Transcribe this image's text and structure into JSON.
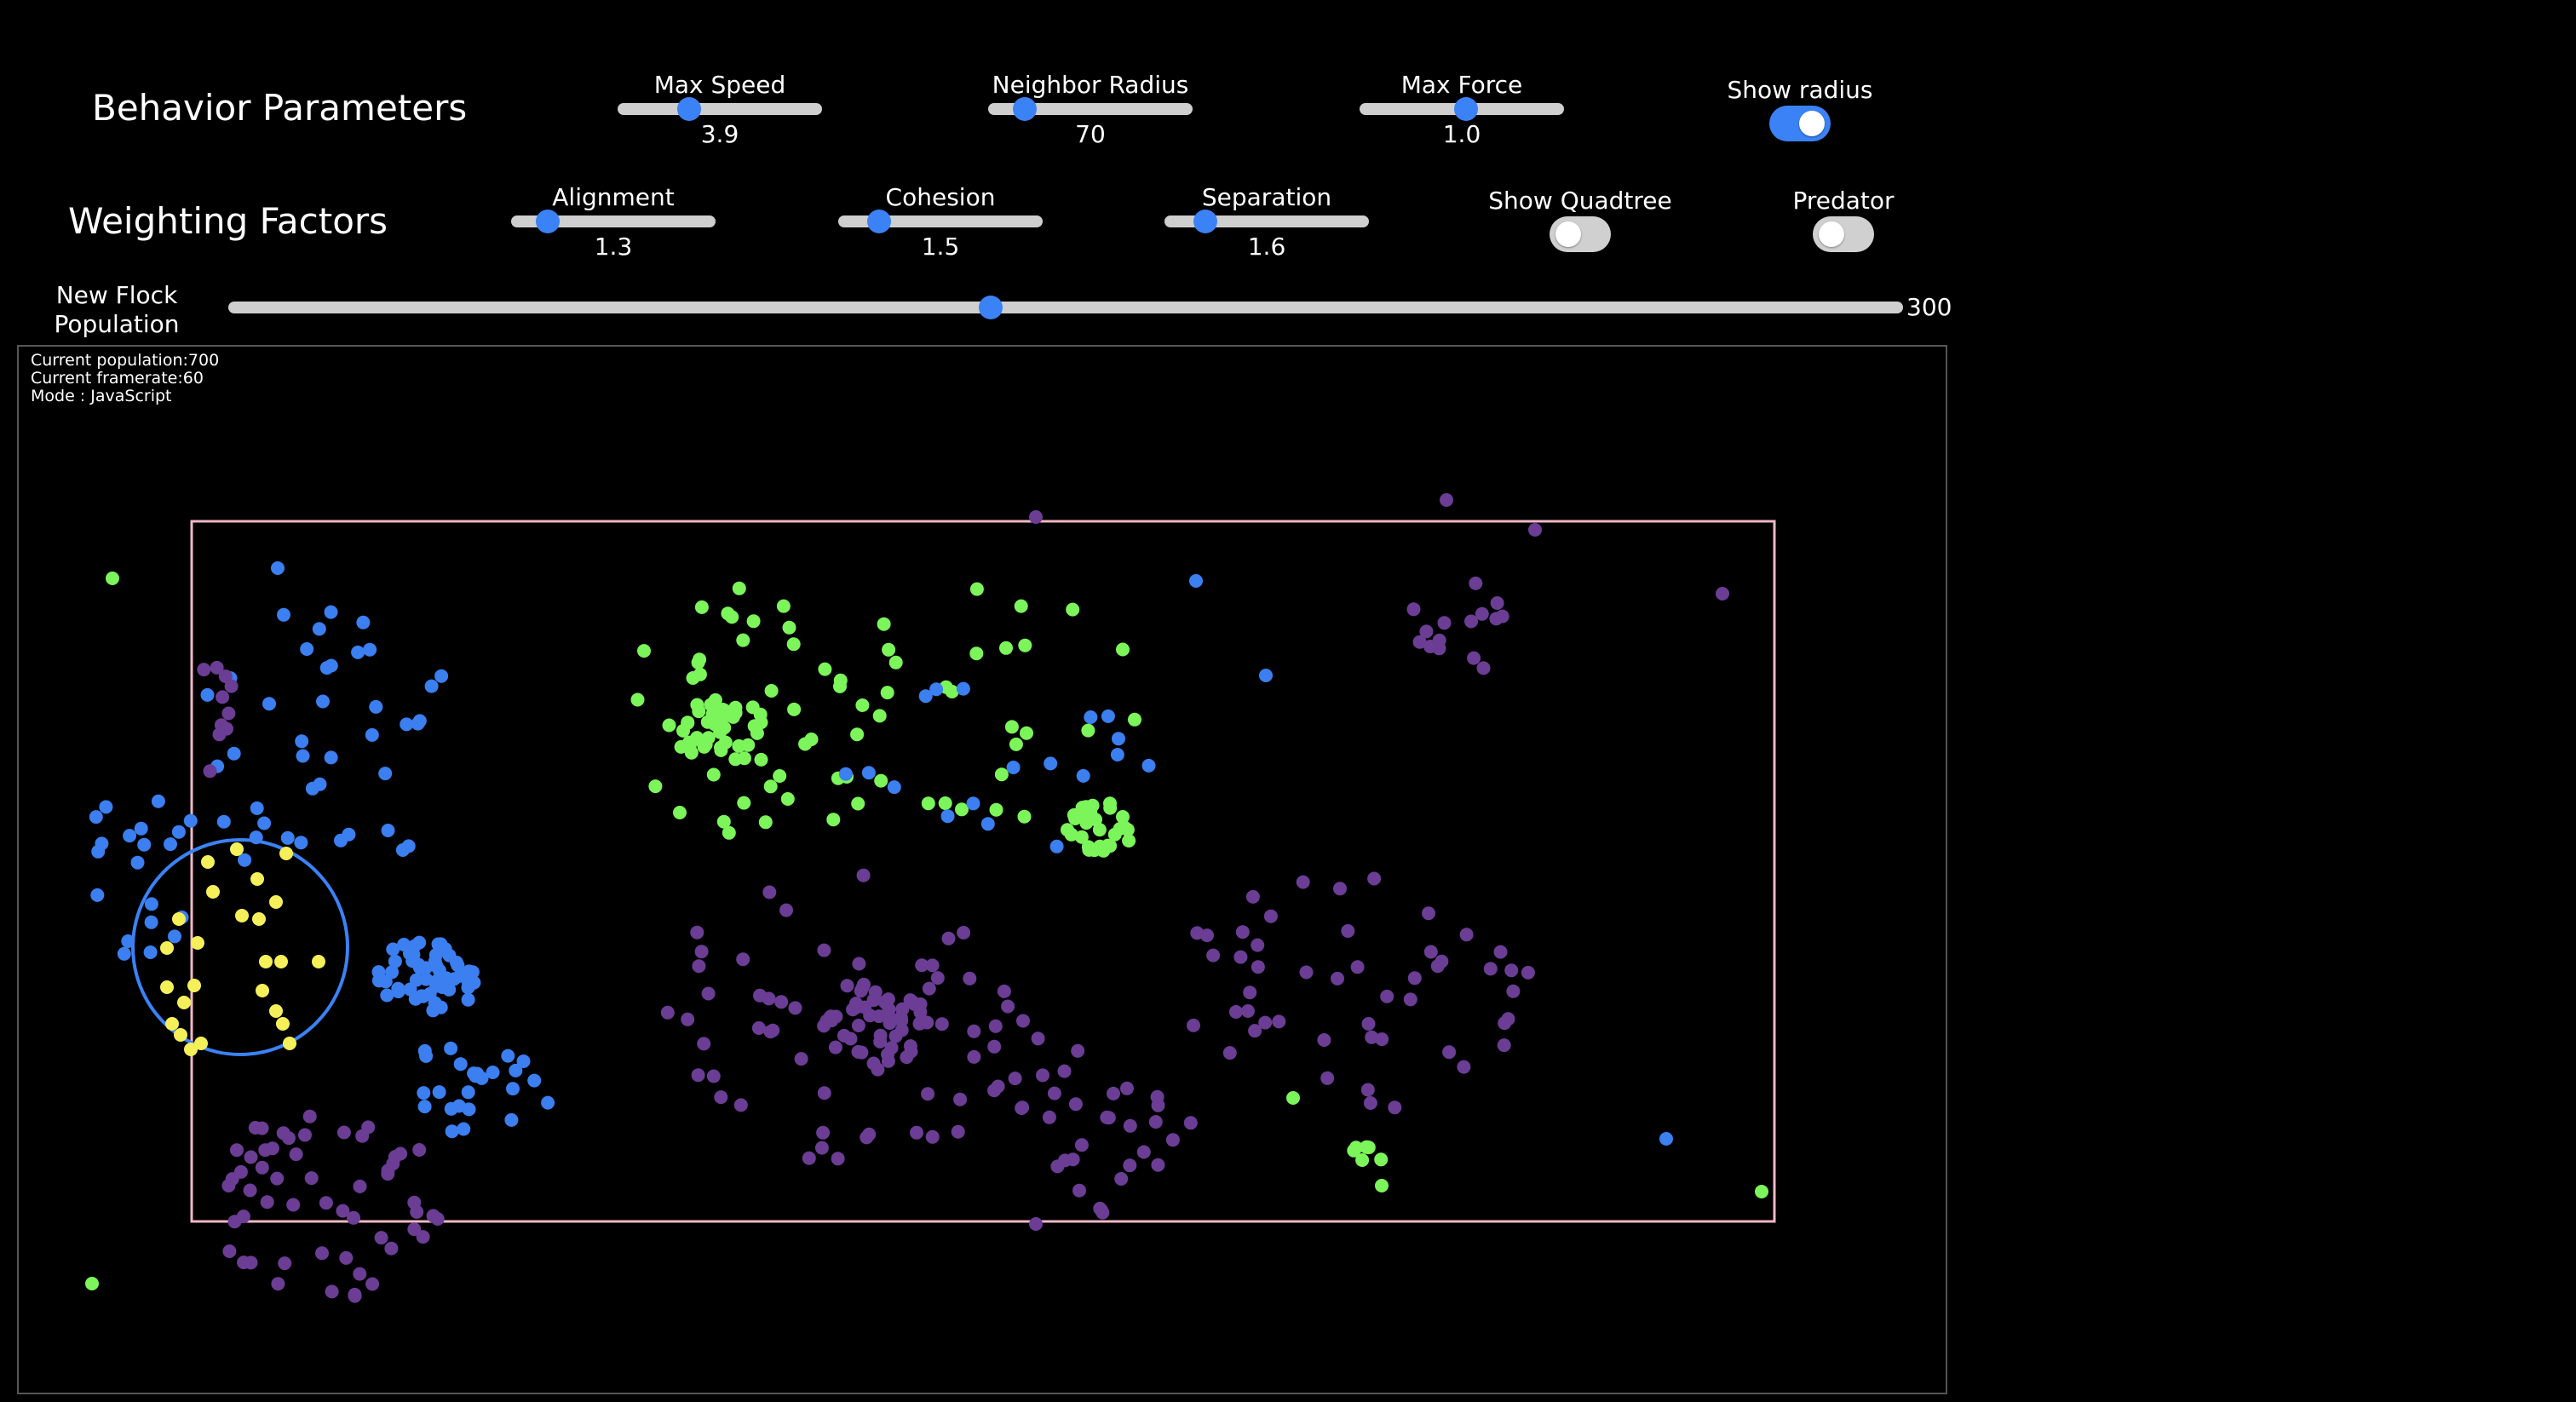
{
  "behavior": {
    "title": "Behavior Parameters",
    "max_speed": {
      "label": "Max Speed",
      "value": "3.9",
      "fraction": 0.35
    },
    "neighbor_radius": {
      "label": "Neighbor Radius",
      "value": "70",
      "fraction": 0.18
    },
    "max_force": {
      "label": "Max Force",
      "value": "1.0",
      "fraction": 0.52
    },
    "show_radius": {
      "label": "Show radius",
      "on": true
    }
  },
  "weighting": {
    "title": "Weighting Factors",
    "alignment": {
      "label": "Alignment",
      "value": "1.3",
      "fraction": 0.18
    },
    "cohesion": {
      "label": "Cohesion",
      "value": "1.5",
      "fraction": 0.2
    },
    "separation": {
      "label": "Separation",
      "value": "1.6",
      "fraction": 0.2
    },
    "show_quadtree": {
      "label": "Show Quadtree",
      "on": false
    },
    "predator": {
      "label": "Predator",
      "on": false
    }
  },
  "population": {
    "label_line1": "New Flock",
    "label_line2": "Population",
    "value": "300",
    "fraction": 0.455
  },
  "stats": {
    "population": "Current population:700",
    "framerate": "Current framerate:60",
    "mode": "Mode : JavaScript"
  },
  "colors": {
    "accent": "#3b82f6",
    "flock_blue": "#3b7ff0",
    "flock_green": "#7cf55a",
    "flock_purple": "#6b3d94",
    "flock_yellow": "#f5f05a",
    "quadtree_rect": "#f0b8c4"
  }
}
